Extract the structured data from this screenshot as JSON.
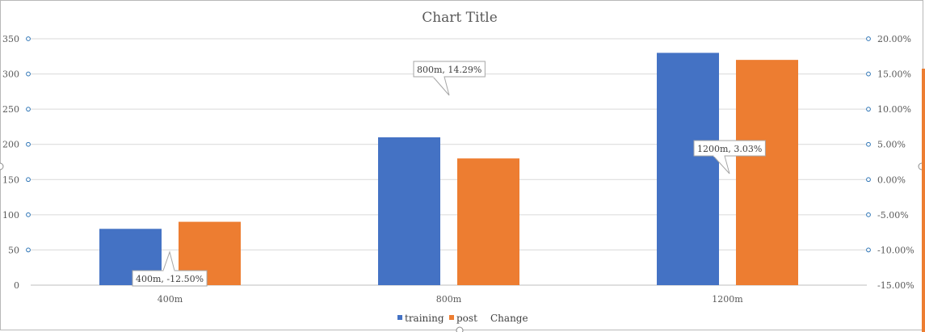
{
  "chart_data": {
    "type": "bar",
    "title": "Chart Title",
    "categories": [
      "400m",
      "800m",
      "1200m"
    ],
    "series": [
      {
        "name": "training",
        "values": [
          80,
          210,
          330
        ],
        "color": "#4472C4",
        "axis": "primary"
      },
      {
        "name": "post",
        "values": [
          90,
          180,
          320
        ],
        "color": "#ED7D31",
        "axis": "primary"
      },
      {
        "name": "Change",
        "values": [
          -12.5,
          14.29,
          3.03
        ],
        "axis": "secondary",
        "display": "callout-labels"
      }
    ],
    "ylim": [
      0,
      350
    ],
    "y_ticks": [
      "0",
      "50",
      "100",
      "150",
      "200",
      "250",
      "300",
      "350"
    ],
    "y2lim": [
      -15,
      20
    ],
    "y2_ticks": [
      "-15.00%",
      "-10.00%",
      "-5.00%",
      "0.00%",
      "5.00%",
      "10.00%",
      "15.00%",
      "20.00%"
    ],
    "data_labels": [
      "400m, -12.50%",
      "800m, 14.29%",
      "1200m, 3.03%"
    ],
    "grid": true,
    "legend": "bottom",
    "gridline_color": "#d9d9d9",
    "marker_color": "#2e75b6"
  }
}
